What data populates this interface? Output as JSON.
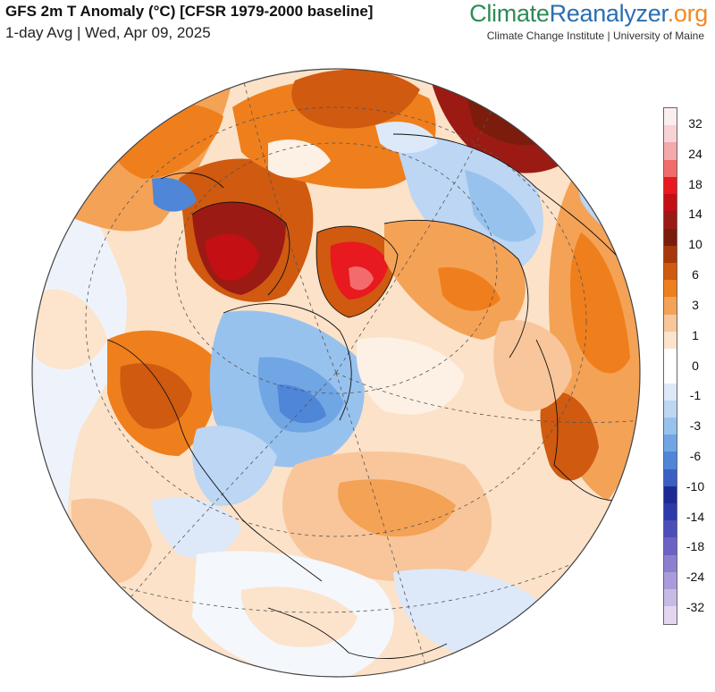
{
  "header": {
    "title": "GFS 2m T Anomaly (°C) [CFSR 1979-2000 baseline]",
    "subtitle": "1-day Avg | Wed, Apr 09, 2025"
  },
  "brand": {
    "part1": "Climate",
    "part2": "Reanalyzer",
    "part3": ".org",
    "tagline": "Climate Change Institute | University of Maine"
  },
  "legend": {
    "labels": [
      "32",
      "24",
      "18",
      "14",
      "10",
      "6",
      "3",
      "1",
      "0",
      "-1",
      "-3",
      "-6",
      "-10",
      "-14",
      "-18",
      "-24",
      "-32"
    ],
    "colors": [
      "#fbeef0",
      "#f7d3d6",
      "#f4a9aa",
      "#f26c6c",
      "#e8191f",
      "#c40f14",
      "#9c1a14",
      "#7c1c0c",
      "#a8380c",
      "#cf5a10",
      "#ef7f1c",
      "#f4a256",
      "#f8c69a",
      "#fce3cc",
      "#ffffff",
      "#ffffff",
      "#dde9f9",
      "#bcd6f4",
      "#98c2ee",
      "#71a6e4",
      "#4f86d8",
      "#3a5fc4",
      "#1e2a94",
      "#2b3aa8",
      "#4b4db8",
      "#6b63c4",
      "#8c7fd0",
      "#ab9bdc",
      "#c8bae6",
      "#e4d6f0"
    ]
  }
}
